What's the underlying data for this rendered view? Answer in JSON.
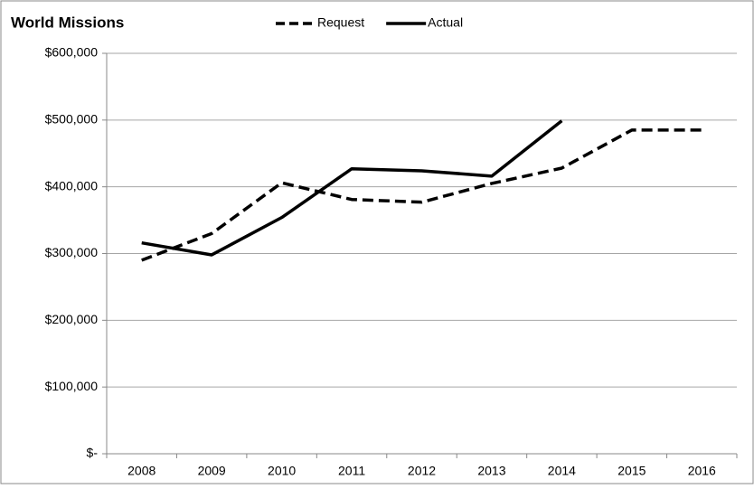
{
  "chart_data": {
    "type": "line",
    "title": "World Missions",
    "categories": [
      "2008",
      "2009",
      "2010",
      "2011",
      "2012",
      "2013",
      "2014",
      "2015",
      "2016"
    ],
    "series": [
      {
        "name": "Request",
        "color": "#000000",
        "dash": true,
        "values": [
          290000,
          330000,
          406000,
          381000,
          377000,
          405000,
          428000,
          485000,
          485000
        ]
      },
      {
        "name": "Actual",
        "color": "#000000",
        "dash": false,
        "values": [
          316000,
          298000,
          354000,
          427000,
          424000,
          416000,
          499000,
          null,
          null
        ]
      }
    ],
    "ylim": [
      0,
      600000
    ],
    "yticks": [
      {
        "value": 0,
        "label": "$-"
      },
      {
        "value": 100000,
        "label": "$100,000"
      },
      {
        "value": 200000,
        "label": "$200,000"
      },
      {
        "value": 300000,
        "label": "$300,000"
      },
      {
        "value": 400000,
        "label": "$400,000"
      },
      {
        "value": 500000,
        "label": "$500,000"
      },
      {
        "value": 600000,
        "label": "$600,000"
      }
    ],
    "grid": true,
    "legend": "top"
  }
}
